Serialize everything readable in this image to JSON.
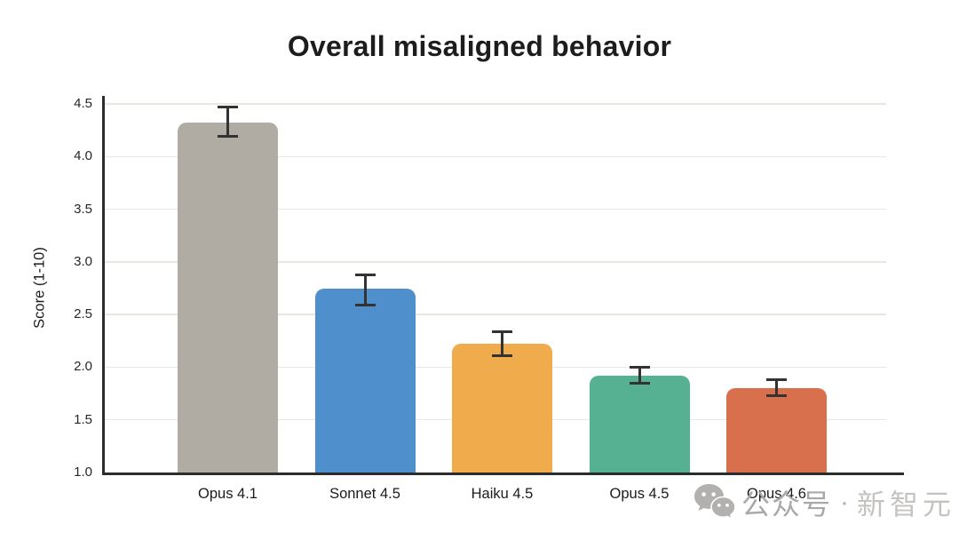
{
  "title": "Overall misaligned behavior",
  "watermark": {
    "icon": "wechat-icon",
    "account": "公众号",
    "separator": "·",
    "brand": "新智元"
  },
  "chart_data": {
    "type": "bar",
    "title": "Overall misaligned behavior",
    "xlabel": "",
    "ylabel": "Score (1-10)",
    "ylim": [
      1.0,
      4.5
    ],
    "yticks": [
      4.5,
      4.0,
      3.5,
      3.0,
      2.5,
      2.0,
      1.5,
      1.0
    ],
    "grid": true,
    "legend": false,
    "categories": [
      "Opus 4.1",
      "Sonnet 4.5",
      "Haiku 4.5",
      "Opus 4.5",
      "Opus 4.6"
    ],
    "values": [
      4.32,
      2.75,
      2.22,
      1.92,
      1.8
    ],
    "error_low": [
      4.19,
      2.59,
      2.11,
      1.85,
      1.73
    ],
    "error_high": [
      4.47,
      2.88,
      2.34,
      2.0,
      1.88
    ],
    "bar_colors": [
      "#b1aca3",
      "#4f8fcc",
      "#f0ab4d",
      "#56b193",
      "#d9704d"
    ],
    "error_bar_color": "#333333",
    "axis_color": "#2c2c2c",
    "gridline_color": "#e9e7e2",
    "background_color": "#ffffff"
  }
}
